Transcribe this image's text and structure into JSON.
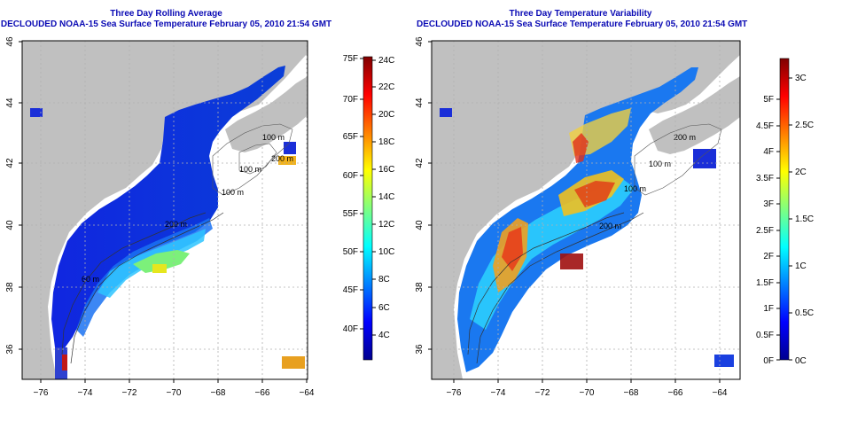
{
  "panels": [
    {
      "title": "Three Day Rolling Average",
      "subtitle": "DECLOUDED NOAA-15 Sea Surface Temperature February 05, 2010 21:54 GMT"
    },
    {
      "title": "Three Day Temperature Variability",
      "subtitle": "DECLOUDED NOAA-15 Sea Surface Temperature February 05, 2010 21:54 GMT"
    }
  ],
  "axes": {
    "x_ticks": [
      "−76",
      "−74",
      "−72",
      "−70",
      "−68",
      "−66",
      "−64"
    ],
    "y_ticks": [
      "36",
      "38",
      "40",
      "42",
      "44",
      "46"
    ]
  },
  "colorbar_left": {
    "fahrenheit": [
      "75F",
      "70F",
      "65F",
      "60F",
      "55F",
      "50F",
      "45F",
      "40F"
    ],
    "celsius": [
      "24C",
      "22C",
      "20C",
      "18C",
      "16C",
      "14C",
      "12C",
      "10C",
      "8C",
      "6C",
      "4C"
    ]
  },
  "colorbar_right": {
    "fahrenheit": [
      "5F",
      "4.5F",
      "4F",
      "3.5F",
      "3F",
      "2.5F",
      "2F",
      "1.5F",
      "1F",
      "0.5F",
      "0F"
    ],
    "celsius": [
      "3C",
      "2.5C",
      "2C",
      "1.5C",
      "1C",
      "0.5C",
      "0C"
    ]
  },
  "depth_labels": [
    "100 m",
    "200 m",
    "100 m",
    "100 m",
    "200 m",
    "60 m",
    "200 m",
    "100 m",
    "100 m",
    "200 m",
    "200 m",
    "60 m"
  ],
  "colors": {
    "title": "#0a0ab4",
    "land": "#c0c0c0",
    "ocean": "#ffffff",
    "grid": "#b0b0b0"
  },
  "legend_icons": [
    "colorbar-jet"
  ]
}
